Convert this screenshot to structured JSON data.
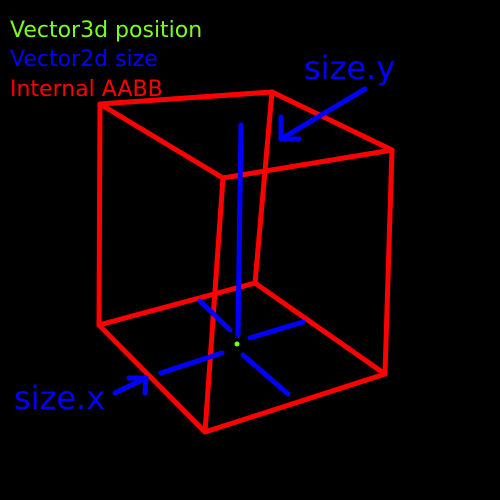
{
  "legend": [
    {
      "label": "Vector3d position",
      "color": "#7CFC21"
    },
    {
      "label": "Vector2d size",
      "color": "#0000FF"
    },
    {
      "label": "Internal AABB",
      "color": "#FF0000"
    }
  ],
  "callouts": {
    "size_y": {
      "label": "size.y",
      "color": "#0000FF"
    },
    "size_x": {
      "label": "size.x",
      "color": "#0000FF"
    }
  },
  "colors": {
    "background": "#000000",
    "aabb": "#FF0000",
    "size": "#0000FF",
    "position": "#7CFC21"
  }
}
